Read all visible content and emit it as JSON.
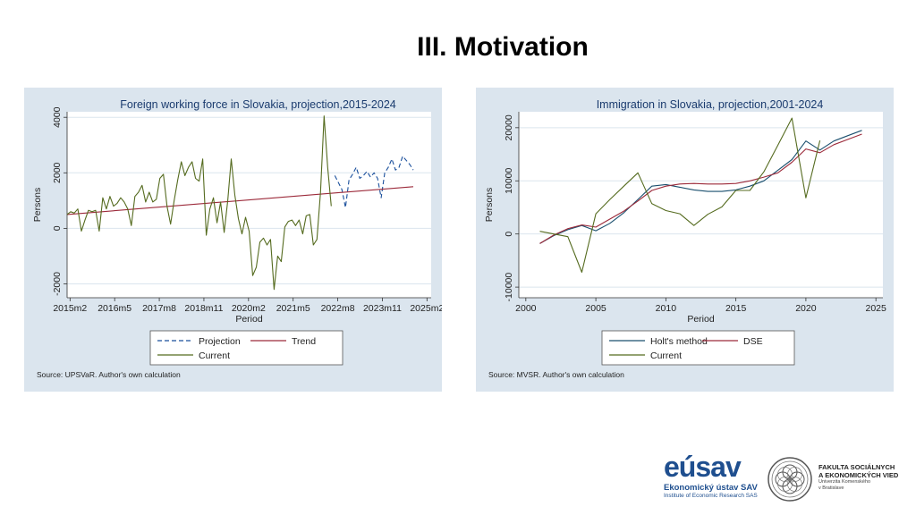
{
  "slide_title": "III. Motivation",
  "chart_data": [
    {
      "type": "line",
      "title": "Foreign working force in Slovakia, projection,2015-2024",
      "xlabel": "Period",
      "ylabel": "Persons",
      "ylim": [
        -2500,
        4200
      ],
      "xlim": [
        2015.0,
        2025.2
      ],
      "x_ticks": [
        {
          "x": 2015.083,
          "label": "2015m2"
        },
        {
          "x": 2016.333,
          "label": "2016m5"
        },
        {
          "x": 2017.583,
          "label": "2017m8"
        },
        {
          "x": 2018.833,
          "label": "2018m11"
        },
        {
          "x": 2020.083,
          "label": "2020m2"
        },
        {
          "x": 2021.333,
          "label": "2021m5"
        },
        {
          "x": 2022.583,
          "label": "2022m8"
        },
        {
          "x": 2023.833,
          "label": "2023m11"
        },
        {
          "x": 2025.083,
          "label": "2025m2"
        }
      ],
      "y_ticks": [
        -2000,
        0,
        2000,
        4000
      ],
      "grid": true,
      "legend_position": "bottom",
      "series": [
        {
          "name": "Projection",
          "color": "#1a4f9c",
          "dash": true,
          "x": [
            2022.5,
            2022.6,
            2022.7,
            2022.8,
            2022.9,
            2023.0,
            2023.1,
            2023.2,
            2023.3,
            2023.4,
            2023.5,
            2023.6,
            2023.7,
            2023.8,
            2023.9,
            2024.0,
            2024.1,
            2024.2,
            2024.3,
            2024.4,
            2024.5,
            2024.6,
            2024.7
          ],
          "y": [
            1900,
            1650,
            1400,
            750,
            1750,
            1950,
            2200,
            1800,
            1900,
            2050,
            1850,
            2000,
            1800,
            1100,
            2000,
            2200,
            2500,
            2100,
            2200,
            2600,
            2450,
            2300,
            2100
          ]
        },
        {
          "name": "Trend",
          "color": "#9c2a3a",
          "dash": false,
          "x": [
            2015.0,
            2024.7
          ],
          "y": [
            500,
            1500
          ]
        },
        {
          "name": "Current",
          "color": "#556b1f",
          "dash": false,
          "x": [
            2015.0,
            2015.1,
            2015.2,
            2015.3,
            2015.4,
            2015.5,
            2015.6,
            2015.7,
            2015.8,
            2015.9,
            2016.0,
            2016.1,
            2016.2,
            2016.3,
            2016.4,
            2016.5,
            2016.6,
            2016.7,
            2016.8,
            2016.9,
            2017.0,
            2017.1,
            2017.2,
            2017.3,
            2017.4,
            2017.5,
            2017.6,
            2017.7,
            2017.8,
            2017.9,
            2018.0,
            2018.1,
            2018.2,
            2018.3,
            2018.4,
            2018.5,
            2018.6,
            2018.7,
            2018.8,
            2018.9,
            2019.0,
            2019.1,
            2019.2,
            2019.3,
            2019.4,
            2019.5,
            2019.6,
            2019.7,
            2019.8,
            2019.9,
            2020.0,
            2020.1,
            2020.2,
            2020.3,
            2020.4,
            2020.5,
            2020.6,
            2020.7,
            2020.8,
            2020.9,
            2021.0,
            2021.1,
            2021.2,
            2021.3,
            2021.4,
            2021.5,
            2021.6,
            2021.7,
            2021.8,
            2021.9,
            2022.0,
            2022.1,
            2022.2,
            2022.3,
            2022.4
          ],
          "y": [
            500,
            600,
            550,
            700,
            -100,
            300,
            650,
            600,
            650,
            -100,
            1100,
            700,
            1150,
            800,
            900,
            1100,
            950,
            700,
            100,
            1150,
            1300,
            1550,
            950,
            1300,
            950,
            1050,
            1800,
            1950,
            800,
            150,
            1000,
            1750,
            2400,
            1900,
            2200,
            2400,
            1800,
            1700,
            2500,
            -250,
            700,
            1100,
            200,
            950,
            -150,
            1000,
            2500,
            1200,
            350,
            -200,
            400,
            -100,
            -1700,
            -1400,
            -500,
            -350,
            -600,
            -400,
            -2200,
            -1000,
            -1200,
            50,
            250,
            300,
            100,
            300,
            -200,
            450,
            500,
            -600,
            -400,
            1300,
            4050,
            2200,
            800
          ]
        }
      ],
      "legend": [
        "Projection",
        "Trend",
        "Current"
      ],
      "source": "Source: UPSVaR. Author's own calculation"
    },
    {
      "type": "line",
      "title": "Immigration in Slovakia, projection,2001-2024",
      "xlabel": "Period",
      "ylabel": "Persons",
      "ylim": [
        -12000,
        23000
      ],
      "xlim": [
        1999.5,
        2025.5
      ],
      "x_ticks": [
        2000,
        2005,
        2010,
        2015,
        2020,
        2025
      ],
      "y_ticks": [
        -10000,
        0,
        10000,
        20000
      ],
      "grid": true,
      "legend_position": "bottom",
      "series": [
        {
          "name": "Holt's method",
          "color": "#1a4f6e",
          "x": [
            2001,
            2002,
            2003,
            2004,
            2005,
            2006,
            2007,
            2008,
            2009,
            2010,
            2011,
            2012,
            2013,
            2014,
            2015,
            2016,
            2017,
            2018,
            2019,
            2020,
            2021,
            2022,
            2023,
            2024
          ],
          "y": [
            -1800,
            -300,
            800,
            1600,
            600,
            2000,
            4000,
            6500,
            9000,
            9300,
            8800,
            8300,
            8000,
            8000,
            8300,
            9000,
            10000,
            12000,
            14000,
            17500,
            15800,
            17500,
            18500,
            19500
          ]
        },
        {
          "name": "DSE",
          "color": "#9c2a3a",
          "x": [
            2001,
            2002,
            2003,
            2004,
            2005,
            2006,
            2007,
            2008,
            2009,
            2010,
            2011,
            2012,
            2013,
            2014,
            2015,
            2016,
            2017,
            2018,
            2019,
            2020,
            2021,
            2022,
            2023,
            2024
          ],
          "y": [
            -1800,
            -200,
            1000,
            1700,
            1300,
            2800,
            4300,
            6200,
            8200,
            9000,
            9400,
            9500,
            9400,
            9400,
            9500,
            10000,
            10700,
            11500,
            13500,
            16000,
            15300,
            16800,
            17800,
            18800
          ]
        },
        {
          "name": "Current",
          "color": "#556b1f",
          "x": [
            2001,
            2002,
            2003,
            2004,
            2005,
            2006,
            2007,
            2008,
            2009,
            2010,
            2011,
            2012,
            2013,
            2014,
            2015,
            2016,
            2017,
            2018,
            2019,
            2020,
            2021
          ],
          "y": [
            500,
            0,
            -500,
            -7200,
            3800,
            6500,
            9000,
            11500,
            5700,
            4400,
            3800,
            1600,
            3700,
            5100,
            8200,
            8200,
            11700,
            16700,
            21800,
            6800,
            17600
          ]
        }
      ],
      "legend": [
        "Holt's method",
        "DSE",
        "Current"
      ],
      "source": "Source: MVSR. Author's own calculation"
    }
  ],
  "logos": {
    "eusav_word": "eúsav",
    "eusav_line1": "Ekonomický ústav SAV",
    "eusav_line2": "Institute of Economic Research SAS",
    "fsev_line1": "FAKULTA SOCIÁLNYCH",
    "fsev_line2": "A EKONOMICKÝCH VIED",
    "fsev_small1": "Univerzita Komenského",
    "fsev_small2": "v Bratislave"
  }
}
